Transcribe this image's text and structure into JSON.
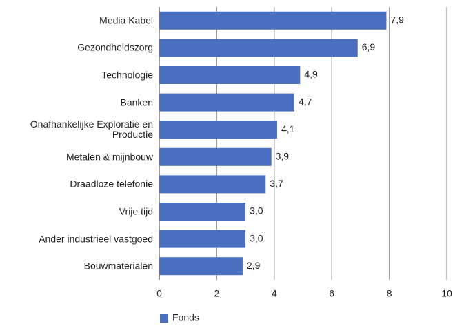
{
  "chart_data": {
    "type": "bar",
    "orientation": "horizontal",
    "categories": [
      "Media Kabel",
      "Gezondheidszorg",
      "Technologie",
      "Banken",
      "Onafhankelijke Exploratie en Productie",
      "Metalen & mijnbouw",
      "Draadloze telefonie",
      "Vrije tijd",
      "Ander industrieel vastgoed",
      "Bouwmaterialen"
    ],
    "series": [
      {
        "name": "Fonds",
        "color": "#4a6fbf",
        "values": [
          7.9,
          6.9,
          4.9,
          4.7,
          4.1,
          3.9,
          3.7,
          3.0,
          3.0,
          2.9
        ],
        "value_labels": [
          "7,9",
          "6,9",
          "4,9",
          "4,7",
          "4,1",
          "3,9",
          "3,7",
          "3,0",
          "3,0",
          "2,9"
        ]
      }
    ],
    "xlim": [
      0,
      10
    ],
    "xticks": [
      0,
      2,
      4,
      6,
      8,
      10
    ],
    "grid": true,
    "legend": "bottom"
  }
}
